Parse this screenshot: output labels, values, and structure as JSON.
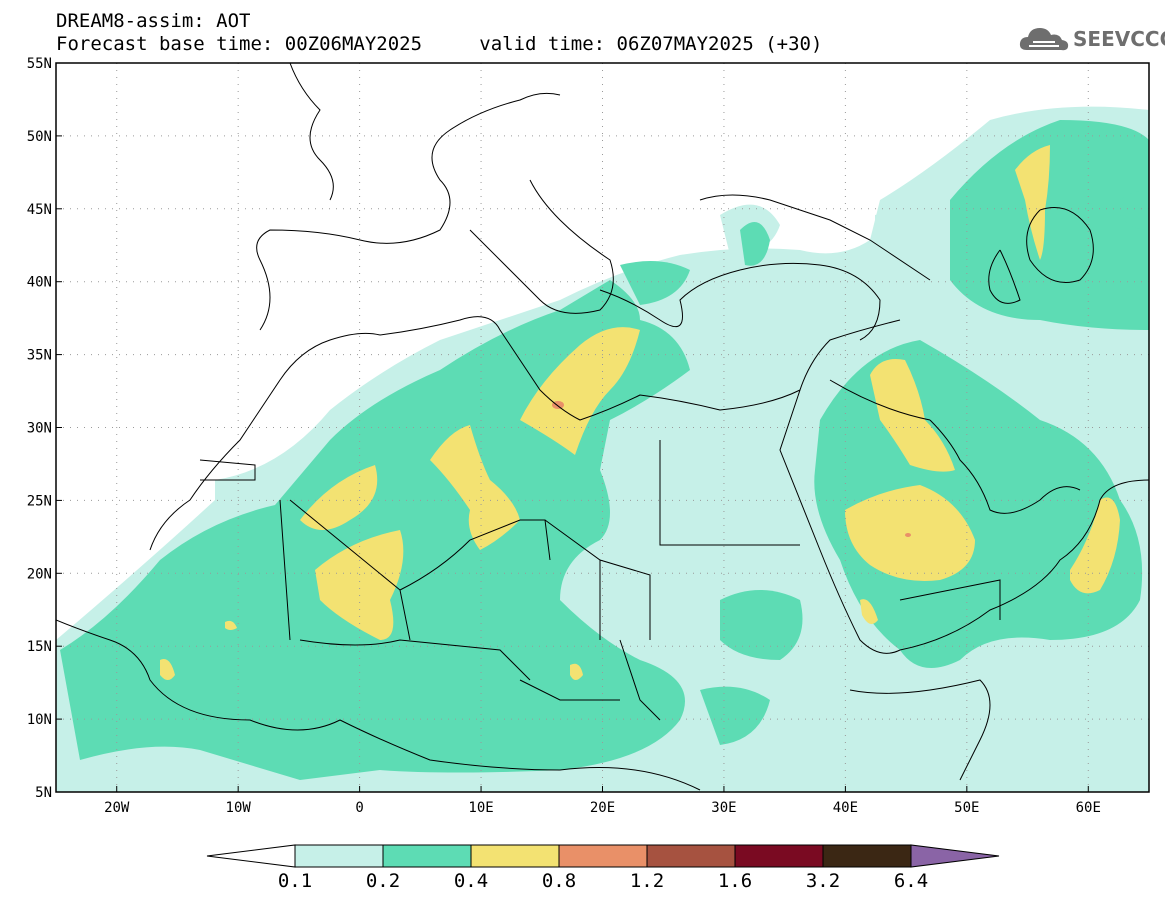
{
  "header": {
    "title": "DREAM8-assim: AOT",
    "base_time_label": "Forecast base time: 00Z06MAY2025",
    "valid_time_label": "valid time: 06Z07MAY2025 (+30)"
  },
  "logo": {
    "text": "SEEVCCC",
    "icon": "cloud-icon"
  },
  "map": {
    "lat_labels": [
      "55N",
      "50N",
      "45N",
      "40N",
      "35N",
      "30N",
      "25N",
      "20N",
      "15N",
      "10N",
      "5N"
    ],
    "lon_labels": [
      "20W",
      "10W",
      "0",
      "10E",
      "20E",
      "30E",
      "40E",
      "50E",
      "60E"
    ],
    "lon_range": [
      -25,
      65
    ],
    "lat_range": [
      5,
      55
    ],
    "gridlines": "dotted"
  },
  "colorbar": {
    "labels": [
      "0.1",
      "0.2",
      "0.4",
      "0.8",
      "1.2",
      "1.6",
      "3.2",
      "6.4"
    ],
    "colors": [
      "#ffffff",
      "#c6f0e8",
      "#5ddcb4",
      "#f3e272",
      "#e99068",
      "#a65240",
      "#7a0a22",
      "#3b2714",
      "#8a64a6"
    ]
  }
}
